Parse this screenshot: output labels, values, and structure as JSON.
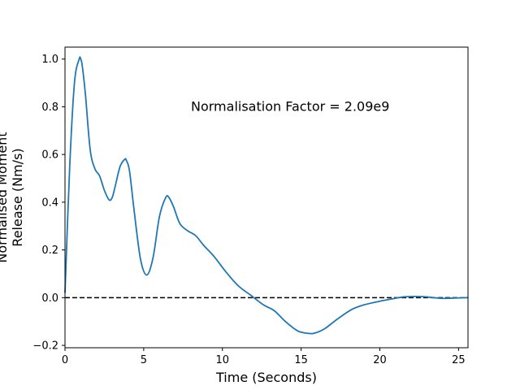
{
  "chart_data": {
    "type": "line",
    "xlabel": "Time (Seconds)",
    "ylabel_lines": [
      "Normalised Moment",
      "Release (Nm/s)"
    ],
    "annotation": {
      "text": "Normalisation Factor = 2.09e9",
      "x": 8,
      "y": 0.8
    },
    "xlim": [
      0,
      25.6
    ],
    "ylim": [
      -0.21,
      1.05
    ],
    "xticks": [
      0,
      5,
      10,
      15,
      20,
      25
    ],
    "yticks": [
      -0.2,
      0.0,
      0.2,
      0.4,
      0.6,
      0.8,
      1.0
    ],
    "ytick_labels": [
      "−0.2",
      "0.0",
      "0.2",
      "0.4",
      "0.6",
      "0.8",
      "1.0"
    ],
    "reference_line": {
      "y": 0.0,
      "style": "dashed",
      "color": "#000000"
    },
    "grid": false,
    "series": [
      {
        "color": "#1f77b4",
        "x": [
          0,
          0.3,
          0.6,
          0.9,
          1.0,
          1.1,
          1.3,
          1.6,
          1.9,
          2.2,
          2.5,
          2.8,
          3.0,
          3.2,
          3.5,
          3.8,
          3.9,
          4.1,
          4.4,
          4.8,
          5.2,
          5.6,
          6.0,
          6.4,
          6.6,
          6.9,
          7.3,
          7.8,
          8.3,
          8.8,
          9.5,
          10.2,
          11.0,
          11.8,
          12.6,
          13.3,
          14.0,
          14.8,
          15.5,
          15.9,
          16.5,
          17.3,
          18.2,
          19.0,
          20.0,
          20.8,
          21.5,
          22.2,
          22.8,
          23.4,
          24.0,
          24.6,
          25.6
        ],
        "y": [
          0.02,
          0.55,
          0.9,
          1.0,
          1.0,
          0.97,
          0.85,
          0.62,
          0.54,
          0.51,
          0.45,
          0.41,
          0.42,
          0.47,
          0.55,
          0.58,
          0.575,
          0.53,
          0.36,
          0.16,
          0.095,
          0.17,
          0.34,
          0.42,
          0.42,
          0.38,
          0.31,
          0.28,
          0.26,
          0.22,
          0.17,
          0.11,
          0.05,
          0.01,
          -0.03,
          -0.055,
          -0.1,
          -0.14,
          -0.15,
          -0.148,
          -0.13,
          -0.09,
          -0.05,
          -0.03,
          -0.015,
          -0.005,
          0.003,
          0.005,
          0.004,
          0.0,
          -0.003,
          -0.002,
          0.0
        ]
      }
    ]
  }
}
